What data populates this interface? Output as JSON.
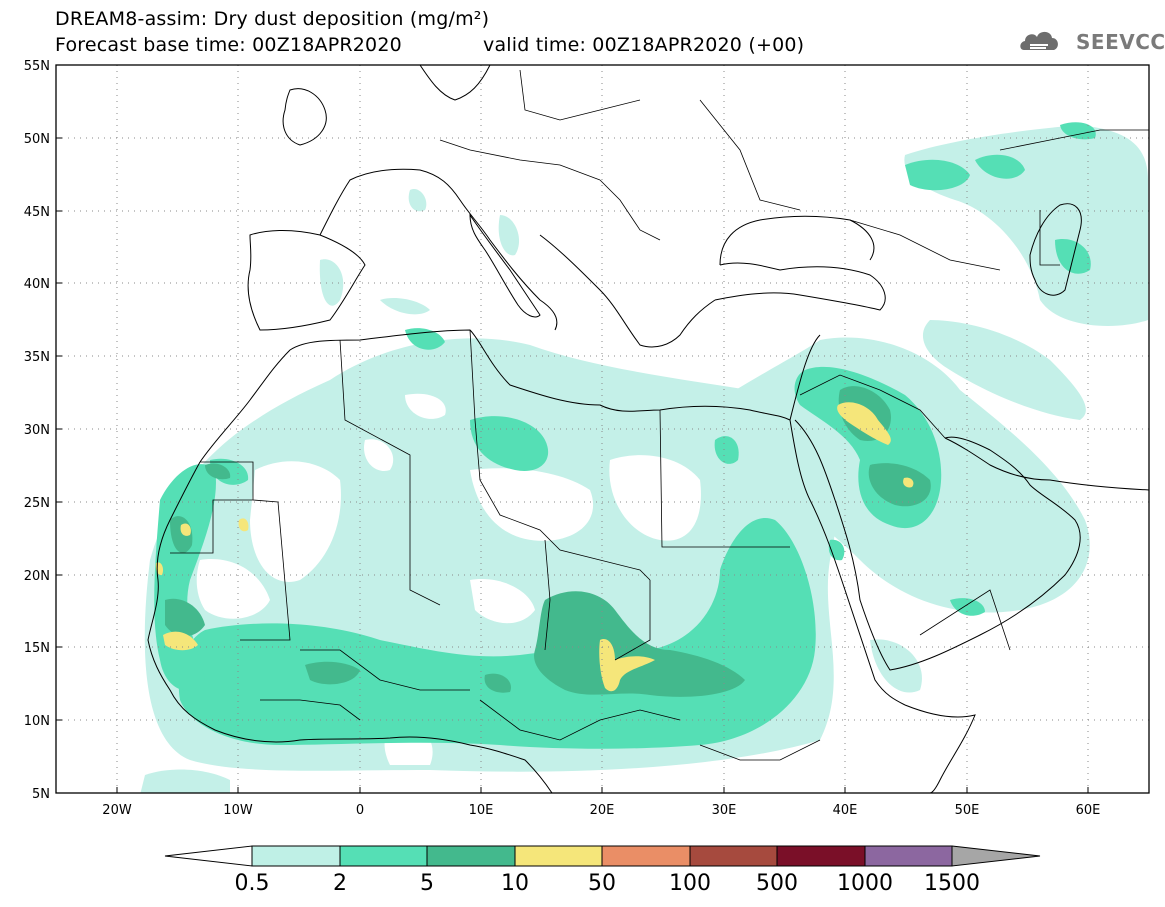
{
  "header": {
    "line1": "DREAM8-assim: Dry dust deposition (mg/m²)",
    "line2": "Forecast base time: 00Z18APR2020",
    "line3": "valid time: 00Z18APR2020 (+00)"
  },
  "logo": {
    "text": "SEEVCCC",
    "icon": "cloud-icon"
  },
  "axes": {
    "lat_labels": [
      "55N",
      "50N",
      "45N",
      "40N",
      "35N",
      "30N",
      "25N",
      "20N",
      "15N",
      "10N",
      "5N"
    ],
    "lon_labels": [
      "20W",
      "10W",
      "0",
      "10E",
      "20E",
      "30E",
      "40E",
      "50E",
      "60E"
    ],
    "lon_range": [
      -25,
      65
    ],
    "lat_range": [
      5,
      55
    ],
    "grid": "dotted"
  },
  "legend": {
    "labels": [
      "0.5",
      "2",
      "5",
      "10",
      "50",
      "100",
      "500",
      "1000",
      "1500"
    ],
    "colors": [
      "#bff0e6",
      "#55dfb5",
      "#43b98d",
      "#f5e67a",
      "#ea8e66",
      "#a64a3e",
      "#7a0f28",
      "#8c67a0"
    ],
    "under_color": "#ffffff",
    "over_color": "#a6a6a6",
    "placement": "bottom"
  },
  "colors": {
    "level_0_5": "#c4f0e8",
    "level_2": "#55dfb5",
    "level_5": "#43b98d",
    "level_10": "#f5e67a",
    "border": "#000000"
  }
}
